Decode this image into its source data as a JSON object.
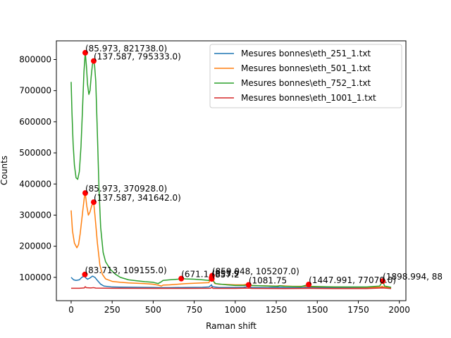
{
  "chart_data": {
    "type": "line",
    "xlabel": "Raman shift",
    "ylabel": "Counts",
    "xlim": [
      -90,
      2040
    ],
    "ylim": [
      25000,
      860000
    ],
    "xticks": [
      0,
      250,
      500,
      750,
      1000,
      1250,
      1500,
      1750,
      2000
    ],
    "yticks": [
      100000,
      200000,
      300000,
      400000,
      500000,
      600000,
      700000,
      800000
    ],
    "grid": false,
    "legend_position": "top-right",
    "series": [
      {
        "name": "Mesures bonnes\\eth_251_1.txt",
        "color": "#1f77b4",
        "points": [
          [
            0,
            100000
          ],
          [
            15,
            92000
          ],
          [
            30,
            90000
          ],
          [
            50,
            92000
          ],
          [
            65,
            100000
          ],
          [
            80,
            104000
          ],
          [
            90,
            98000
          ],
          [
            100,
            94000
          ],
          [
            115,
            98000
          ],
          [
            130,
            104000
          ],
          [
            145,
            100000
          ],
          [
            160,
            90000
          ],
          [
            180,
            78000
          ],
          [
            200,
            72000
          ],
          [
            250,
            69000
          ],
          [
            300,
            68500
          ],
          [
            400,
            68000
          ],
          [
            500,
            67500
          ],
          [
            550,
            67000
          ],
          [
            600,
            67000
          ],
          [
            700,
            67500
          ],
          [
            800,
            68000
          ],
          [
            840,
            69000
          ],
          [
            855,
            76000
          ],
          [
            860,
            70000
          ],
          [
            900,
            67500
          ],
          [
            1000,
            67500
          ],
          [
            1050,
            68000
          ],
          [
            1080,
            70000
          ],
          [
            1100,
            67500
          ],
          [
            1200,
            67000
          ],
          [
            1270,
            68000
          ],
          [
            1300,
            67000
          ],
          [
            1400,
            66500
          ],
          [
            1450,
            68000
          ],
          [
            1500,
            66500
          ],
          [
            1700,
            66000
          ],
          [
            1850,
            66000
          ],
          [
            1890,
            67000
          ],
          [
            1900,
            68000
          ],
          [
            1950,
            66000
          ]
        ]
      },
      {
        "name": "Mesures bonnes\\eth_501_1.txt",
        "color": "#ff7f0e",
        "points": [
          [
            0,
            315000
          ],
          [
            8,
            250000
          ],
          [
            20,
            210000
          ],
          [
            35,
            195000
          ],
          [
            45,
            205000
          ],
          [
            55,
            240000
          ],
          [
            70,
            310000
          ],
          [
            80,
            355000
          ],
          [
            86,
            371000
          ],
          [
            95,
            330000
          ],
          [
            105,
            300000
          ],
          [
            115,
            310000
          ],
          [
            125,
            330000
          ],
          [
            137,
            342000
          ],
          [
            145,
            300000
          ],
          [
            160,
            210000
          ],
          [
            175,
            140000
          ],
          [
            190,
            110000
          ],
          [
            210,
            95000
          ],
          [
            250,
            87000
          ],
          [
            300,
            84000
          ],
          [
            350,
            82000
          ],
          [
            400,
            81000
          ],
          [
            450,
            80000
          ],
          [
            500,
            78000
          ],
          [
            530,
            75000
          ],
          [
            550,
            72000
          ],
          [
            560,
            75000
          ],
          [
            600,
            76000
          ],
          [
            650,
            78000
          ],
          [
            700,
            80000
          ],
          [
            750,
            81000
          ],
          [
            800,
            82000
          ],
          [
            840,
            83000
          ],
          [
            852,
            100000
          ],
          [
            857,
            105000
          ],
          [
            862,
            95000
          ],
          [
            875,
            80000
          ],
          [
            900,
            78000
          ],
          [
            950,
            77000
          ],
          [
            1000,
            76000
          ],
          [
            1050,
            76000
          ],
          [
            1070,
            78000
          ],
          [
            1081,
            80000
          ],
          [
            1090,
            74000
          ],
          [
            1150,
            73000
          ],
          [
            1250,
            72000
          ],
          [
            1270,
            73000
          ],
          [
            1350,
            71000
          ],
          [
            1440,
            71000
          ],
          [
            1448,
            73000
          ],
          [
            1460,
            70000
          ],
          [
            1600,
            69000
          ],
          [
            1800,
            68000
          ],
          [
            1880,
            68000
          ],
          [
            1895,
            71000
          ],
          [
            1910,
            68000
          ],
          [
            1950,
            67000
          ]
        ]
      },
      {
        "name": "Mesures bonnes\\eth_752_1.txt",
        "color": "#2ca02c",
        "points": [
          [
            0,
            728000
          ],
          [
            5,
            630000
          ],
          [
            12,
            530000
          ],
          [
            20,
            460000
          ],
          [
            30,
            420000
          ],
          [
            40,
            415000
          ],
          [
            50,
            440000
          ],
          [
            60,
            520000
          ],
          [
            70,
            650000
          ],
          [
            78,
            760000
          ],
          [
            86,
            822000
          ],
          [
            93,
            780000
          ],
          [
            100,
            720000
          ],
          [
            108,
            688000
          ],
          [
            115,
            700000
          ],
          [
            122,
            745000
          ],
          [
            130,
            785000
          ],
          [
            137,
            795000
          ],
          [
            143,
            780000
          ],
          [
            150,
            730000
          ],
          [
            160,
            560000
          ],
          [
            170,
            380000
          ],
          [
            180,
            260000
          ],
          [
            195,
            180000
          ],
          [
            210,
            150000
          ],
          [
            240,
            125000
          ],
          [
            270,
            110000
          ],
          [
            300,
            100000
          ],
          [
            350,
            92000
          ],
          [
            400,
            89000
          ],
          [
            450,
            86000
          ],
          [
            500,
            84000
          ],
          [
            530,
            80000
          ],
          [
            550,
            86000
          ],
          [
            560,
            90000
          ],
          [
            600,
            92000
          ],
          [
            650,
            94000
          ],
          [
            671,
            96000
          ],
          [
            700,
            95000
          ],
          [
            750,
            94000
          ],
          [
            800,
            92000
          ],
          [
            840,
            90000
          ],
          [
            850,
            98000
          ],
          [
            854,
            105000
          ],
          [
            860,
            92000
          ],
          [
            880,
            80000
          ],
          [
            950,
            76000
          ],
          [
            1000,
            74000
          ],
          [
            1060,
            74000
          ],
          [
            1075,
            77000
          ],
          [
            1082,
            80000
          ],
          [
            1095,
            74000
          ],
          [
            1200,
            72000
          ],
          [
            1260,
            71000
          ],
          [
            1270,
            73000
          ],
          [
            1300,
            71000
          ],
          [
            1400,
            70000
          ],
          [
            1448,
            77000
          ],
          [
            1460,
            71000
          ],
          [
            1600,
            69000
          ],
          [
            1800,
            69000
          ],
          [
            1880,
            72000
          ],
          [
            1899,
            88000
          ],
          [
            1910,
            72000
          ],
          [
            1950,
            68000
          ]
        ]
      },
      {
        "name": "Mesures bonnes\\eth_1001_1.txt",
        "color": "#d62728",
        "points": [
          [
            0,
            65000
          ],
          [
            50,
            65000
          ],
          [
            80,
            66000
          ],
          [
            86,
            70000
          ],
          [
            92,
            67000
          ],
          [
            120,
            66000
          ],
          [
            137,
            67000
          ],
          [
            150,
            65500
          ],
          [
            250,
            65000
          ],
          [
            500,
            64500
          ],
          [
            700,
            64500
          ],
          [
            850,
            65000
          ],
          [
            857,
            68000
          ],
          [
            865,
            64500
          ],
          [
            1000,
            64500
          ],
          [
            1081,
            65500
          ],
          [
            1100,
            64500
          ],
          [
            1300,
            64000
          ],
          [
            1448,
            64500
          ],
          [
            1600,
            64000
          ],
          [
            1800,
            64000
          ],
          [
            1899,
            66000
          ],
          [
            1950,
            64000
          ]
        ]
      }
    ],
    "annotations": [
      {
        "x": 85.973,
        "y": 821738.0,
        "label": "(85.973, 821738.0)"
      },
      {
        "x": 137.587,
        "y": 795333.0,
        "label": "(137.587, 795333.0)"
      },
      {
        "x": 85.973,
        "y": 370928.0,
        "label": "(85.973, 370928.0)"
      },
      {
        "x": 137.587,
        "y": 341642.0,
        "label": "(137.587, 341642.0)"
      },
      {
        "x": 83.713,
        "y": 109155.0,
        "label": "(83.713, 109155.0)"
      },
      {
        "x": 671.1,
        "y": 96000,
        "label": "(671.1"
      },
      {
        "x": 859.048,
        "y": 105207.0,
        "label": "(859.048, 105207.0)"
      },
      {
        "x": 855.9,
        "y": 99000,
        "label": "(855.9"
      },
      {
        "x": 857.2,
        "y": 95000,
        "label": "(857.2"
      },
      {
        "x": 1081.75,
        "y": 76000,
        "label": "(1081.75"
      },
      {
        "x": 1447.991,
        "y": 77070.0,
        "label": "(1447.991, 77070.0)"
      },
      {
        "x": 1898.994,
        "y": 88000,
        "label": "(1898.994, 88"
      }
    ]
  }
}
